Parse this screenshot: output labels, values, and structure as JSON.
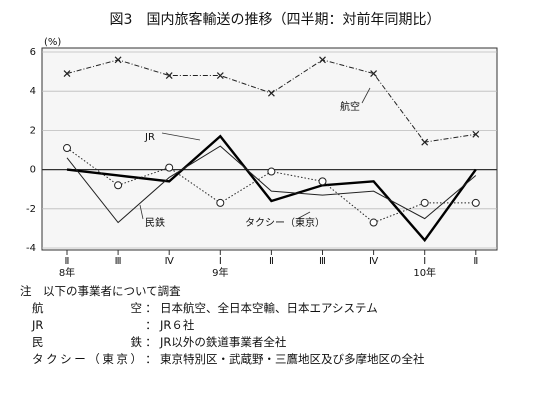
{
  "chart_data": {
    "type": "line",
    "title": "図3　国内旅客輸送の推移（四半期：対前年同期比）",
    "y_unit": "(%)",
    "categories": [
      "Ⅱ",
      "Ⅲ",
      "Ⅳ",
      "Ⅰ",
      "Ⅱ",
      "Ⅲ",
      "Ⅳ",
      "Ⅰ",
      "Ⅱ"
    ],
    "year_labels": [
      "8年",
      null,
      null,
      "9年",
      null,
      null,
      null,
      "10年",
      null
    ],
    "ylim": [
      -4,
      6
    ],
    "yticks": [
      -4,
      -2,
      0,
      2,
      4,
      6
    ],
    "grid": true,
    "series": [
      {
        "name": "航空",
        "color": "#222",
        "style": "dash-dot",
        "marker": "x",
        "values": [
          4.9,
          5.6,
          4.8,
          4.8,
          3.9,
          5.6,
          4.9,
          1.4,
          1.8
        ]
      },
      {
        "name": "JR",
        "color": "#000",
        "style": "thick",
        "marker": "none",
        "values": [
          0.0,
          -0.3,
          -0.6,
          1.7,
          -1.6,
          -0.8,
          -0.6,
          -3.6,
          0.0
        ]
      },
      {
        "name": "民鉄",
        "color": "#222",
        "style": "thin",
        "marker": "none",
        "values": [
          0.6,
          -2.7,
          -0.4,
          1.2,
          -1.1,
          -1.3,
          -1.1,
          -2.5,
          -0.3
        ]
      },
      {
        "name": "タクシー（東京）",
        "color": "#222",
        "style": "dotted",
        "marker": "circle",
        "values": [
          1.1,
          -0.8,
          0.1,
          -1.7,
          -0.1,
          -0.6,
          -2.7,
          -1.7,
          -1.7
        ]
      }
    ]
  },
  "notes": {
    "heading": "注",
    "intro": "以下の事業者について調査",
    "rows": [
      {
        "label": "航空",
        "text": "日本航空、全日本空輸、日本エアシステム"
      },
      {
        "label": "JR",
        "text": "JR６社"
      },
      {
        "label": "民鉄",
        "text": "JR以外の鉄道事業者全社"
      },
      {
        "label": "タクシー（東京）",
        "text": "東京特別区・武蔵野・三鷹地区及び多摩地区の全社"
      }
    ]
  }
}
